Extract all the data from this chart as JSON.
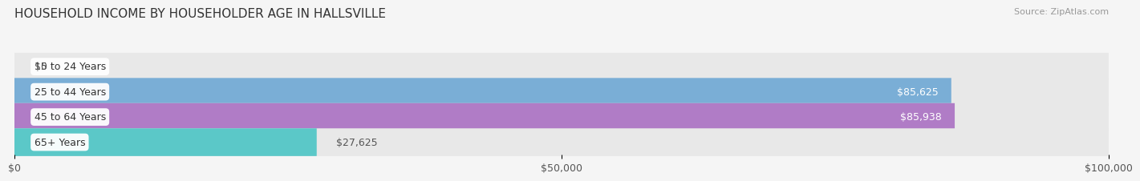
{
  "title": "HOUSEHOLD INCOME BY HOUSEHOLDER AGE IN HALLSVILLE",
  "source": "Source: ZipAtlas.com",
  "categories": [
    "15 to 24 Years",
    "25 to 44 Years",
    "45 to 64 Years",
    "65+ Years"
  ],
  "values": [
    0,
    85625,
    85938,
    27625
  ],
  "bar_colors": [
    "#f08080",
    "#7aaed6",
    "#b07cc6",
    "#5bc8c8"
  ],
  "bar_bg_color": "#e8e8e8",
  "label_texts": [
    "$0",
    "$85,625",
    "$85,938",
    "$27,625"
  ],
  "label_inside": [
    false,
    true,
    true,
    false
  ],
  "xlim": [
    0,
    100000
  ],
  "xticks": [
    0,
    50000,
    100000
  ],
  "xticklabels": [
    "$0",
    "$50,000",
    "$100,000"
  ],
  "title_fontsize": 11,
  "source_fontsize": 8,
  "label_fontsize": 9,
  "tick_fontsize": 9,
  "bar_height": 0.55,
  "background_color": "#f5f5f5"
}
